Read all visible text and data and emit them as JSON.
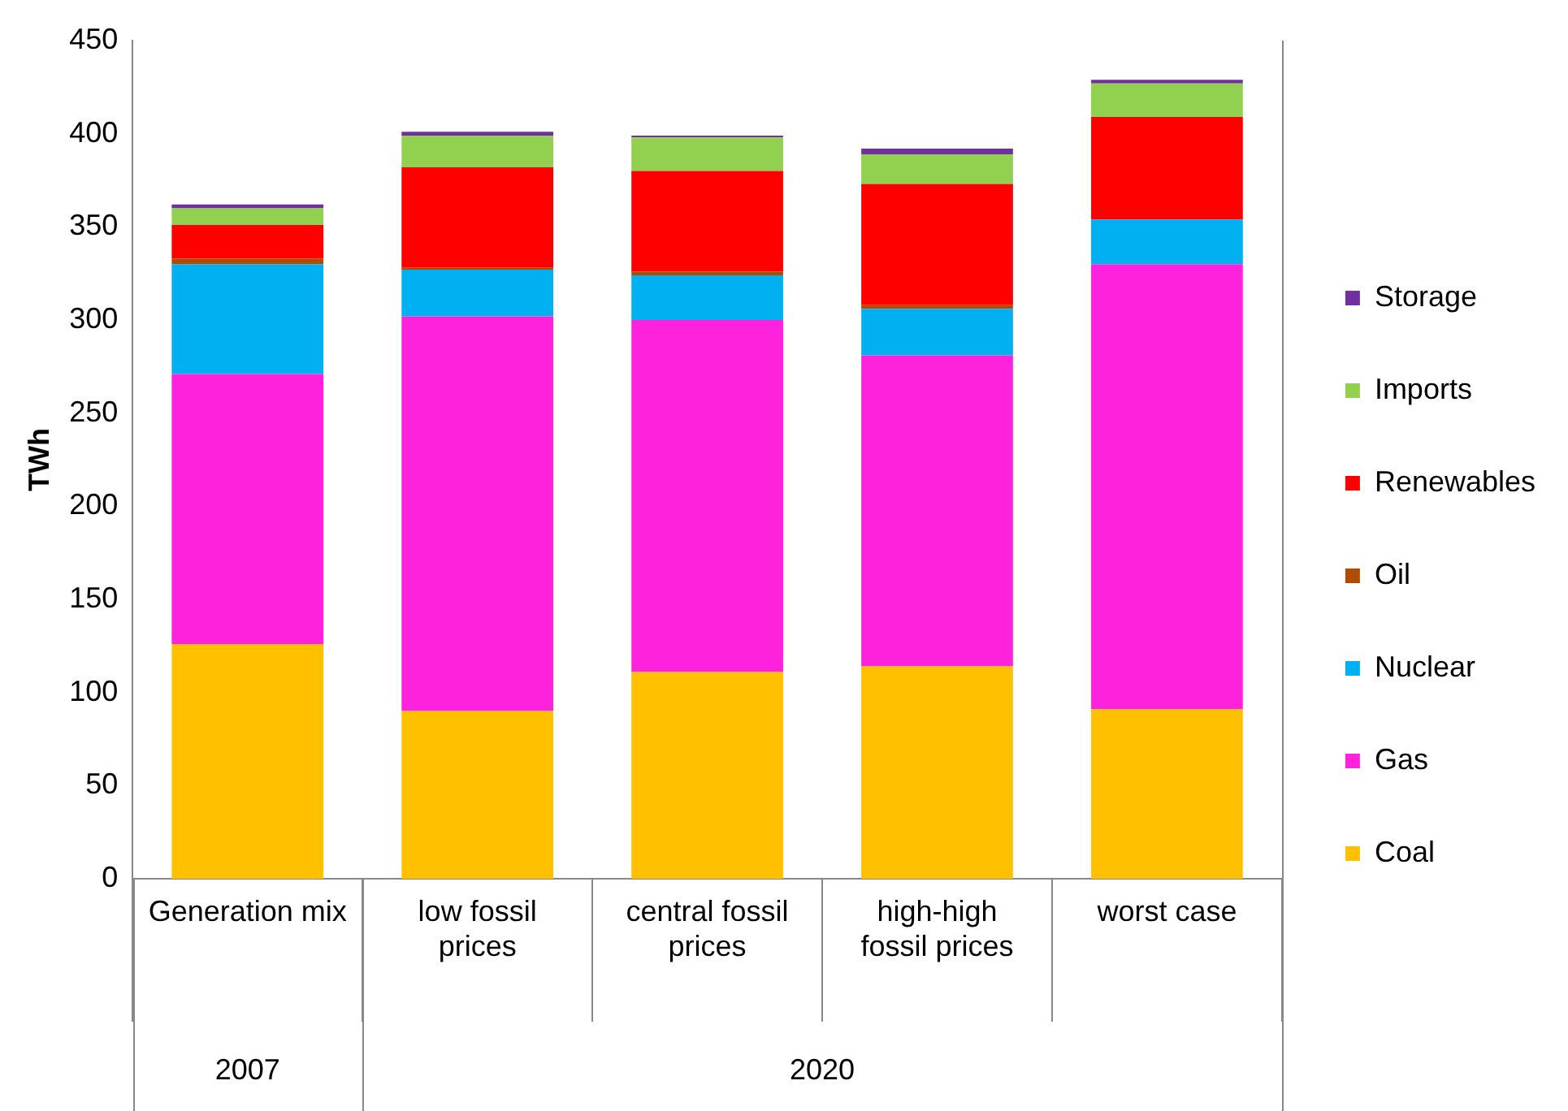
{
  "chart_data": {
    "type": "bar",
    "stacked": true,
    "ylabel": "TWh",
    "categories": [
      "Generation mix",
      "low fossil prices",
      "central fossil prices",
      "high-high fossil prices",
      "worst case"
    ],
    "annotations": [
      "2007",
      "2020"
    ],
    "series": [
      {
        "name": "Coal",
        "color": "#ffc000",
        "values": [
          126,
          90,
          111,
          114,
          91
        ]
      },
      {
        "name": "Gas",
        "color": "#ff22dd",
        "values": [
          145,
          212,
          189,
          167,
          239
        ]
      },
      {
        "name": "Nuclear",
        "color": "#00b0f0",
        "values": [
          59,
          25,
          24,
          25,
          24
        ]
      },
      {
        "name": "Oil",
        "color": "#b04c00",
        "values": [
          3,
          1,
          2,
          2,
          0
        ]
      },
      {
        "name": "Renewables",
        "color": "#ff0000",
        "values": [
          18,
          54,
          54,
          65,
          55
        ]
      },
      {
        "name": "Imports",
        "color": "#92d050",
        "values": [
          9,
          17,
          18,
          16,
          18
        ]
      },
      {
        "name": "Storage",
        "color": "#7030a0",
        "values": [
          2,
          2,
          1,
          3,
          2
        ]
      }
    ],
    "ylim": [
      0,
      450
    ],
    "yticks": [
      0,
      50,
      100,
      150,
      200,
      250,
      300,
      350,
      400,
      450
    ],
    "grid": false,
    "legend": "right"
  }
}
